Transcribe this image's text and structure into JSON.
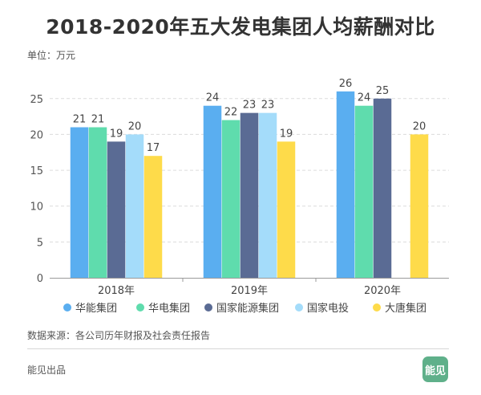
{
  "title": "2018-2020年五大发电集团人均薪酬对比",
  "unit_label": "单位：万元",
  "source": "数据来源：各公司历年财报及社会责任报告",
  "footer": "能见出品",
  "logo_text": "能见",
  "logo_color": "#5fb08a",
  "chart_data": {
    "type": "bar",
    "categories": [
      "2018年",
      "2019年",
      "2020年"
    ],
    "series": [
      {
        "name": "华能集团",
        "color": "#5aaef0",
        "values": [
          21,
          24,
          26
        ]
      },
      {
        "name": "华电集团",
        "color": "#5fdcad",
        "values": [
          21,
          22,
          24
        ]
      },
      {
        "name": "国家能源集团",
        "color": "#5a6b94",
        "values": [
          19,
          23,
          25
        ]
      },
      {
        "name": "国家电投",
        "color": "#a4dcfa",
        "values": [
          20,
          23,
          null
        ]
      },
      {
        "name": "大唐集团",
        "color": "#fedb4a",
        "values": [
          17,
          19,
          20
        ]
      }
    ],
    "data_labels": [
      [
        "21",
        "21",
        "19",
        "20",
        "17"
      ],
      [
        "24",
        "22",
        "23",
        "23",
        "19"
      ],
      [
        "26",
        "24",
        "25",
        "",
        "20"
      ]
    ],
    "ylim": [
      0,
      28
    ],
    "yticks": [
      0,
      5,
      10,
      15,
      20,
      25
    ],
    "grid": true,
    "legend_position": "bottom"
  }
}
